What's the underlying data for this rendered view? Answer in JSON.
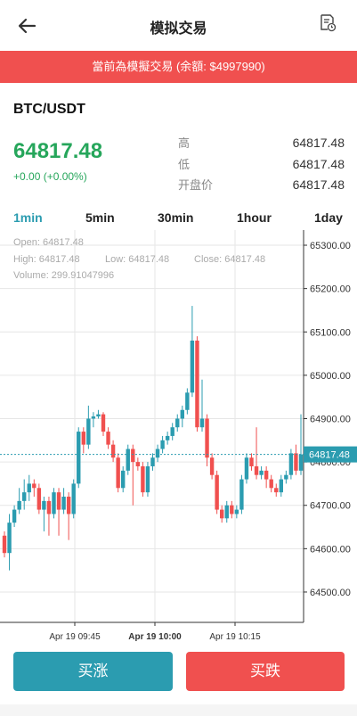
{
  "header": {
    "title": "模拟交易",
    "back_icon": "arrow-left-icon",
    "history_icon": "order-history-icon"
  },
  "banner": {
    "text": "當前為模擬交易 (余額: $4997990)",
    "color": "#f0504f"
  },
  "ticker": {
    "pair": "BTC/USDT",
    "price": "64817.48",
    "change": "+0.00 (+0.00%)",
    "price_color": "#26a65b"
  },
  "stats": [
    {
      "label": "高",
      "value": "64817.48"
    },
    {
      "label": "低",
      "value": "64817.48"
    },
    {
      "label": "开盘价",
      "value": "64817.48"
    }
  ],
  "timeframes": {
    "items": [
      "1min",
      "5min",
      "30min",
      "1hour",
      "1day"
    ],
    "active": "1min",
    "active_color": "#2b9cb0"
  },
  "ohlc": {
    "open": "Open:  64817.48",
    "high": "High:  64817.48",
    "low": "Low:  64817.48",
    "close": "Close:  64817.48",
    "volume": "Volume:  299.91047996"
  },
  "chart_data": {
    "type": "candlestick",
    "y_ticks": [
      "65300.00",
      "65200.00",
      "65100.00",
      "65000.00",
      "64900.00",
      "64800.00",
      "64700.00",
      "64600.00",
      "64500.00"
    ],
    "ylim": [
      64430,
      65335
    ],
    "x_ticks": [
      "Apr 19 09:45",
      "Apr 19 10:00",
      "Apr 19 10:15"
    ],
    "last_price": "64817.48",
    "up_color": "#2b9cb0",
    "down_color": "#f0504f",
    "candles": [
      {
        "o": 64630,
        "c": 64590,
        "h": 64640,
        "l": 64580
      },
      {
        "o": 64590,
        "c": 64660,
        "h": 64680,
        "l": 64550
      },
      {
        "o": 64660,
        "c": 64690,
        "h": 64700,
        "l": 64650
      },
      {
        "o": 64690,
        "c": 64710,
        "h": 64740,
        "l": 64680
      },
      {
        "o": 64710,
        "c": 64730,
        "h": 64760,
        "l": 64690
      },
      {
        "o": 64730,
        "c": 64750,
        "h": 64770,
        "l": 64710
      },
      {
        "o": 64750,
        "c": 64740,
        "h": 64760,
        "l": 64720
      },
      {
        "o": 64740,
        "c": 64690,
        "h": 64750,
        "l": 64680
      },
      {
        "o": 64690,
        "c": 64710,
        "h": 64720,
        "l": 64640
      },
      {
        "o": 64710,
        "c": 64680,
        "h": 64720,
        "l": 64630
      },
      {
        "o": 64680,
        "c": 64730,
        "h": 64740,
        "l": 64670
      },
      {
        "o": 64730,
        "c": 64690,
        "h": 64740,
        "l": 64630
      },
      {
        "o": 64690,
        "c": 64720,
        "h": 64740,
        "l": 64680
      },
      {
        "o": 64720,
        "c": 64680,
        "h": 64730,
        "l": 64620
      },
      {
        "o": 64680,
        "c": 64750,
        "h": 64760,
        "l": 64670
      },
      {
        "o": 64750,
        "c": 64870,
        "h": 64880,
        "l": 64740
      },
      {
        "o": 64870,
        "c": 64840,
        "h": 64880,
        "l": 64820
      },
      {
        "o": 64840,
        "c": 64900,
        "h": 64930,
        "l": 64830
      },
      {
        "o": 64900,
        "c": 64905,
        "h": 64915,
        "l": 64880
      },
      {
        "o": 64905,
        "c": 64910,
        "h": 64920,
        "l": 64900
      },
      {
        "o": 64910,
        "c": 64870,
        "h": 64915,
        "l": 64860
      },
      {
        "o": 64870,
        "c": 64840,
        "h": 64880,
        "l": 64830
      },
      {
        "o": 64840,
        "c": 64810,
        "h": 64850,
        "l": 64800
      },
      {
        "o": 64810,
        "c": 64740,
        "h": 64820,
        "l": 64730
      },
      {
        "o": 64740,
        "c": 64780,
        "h": 64790,
        "l": 64730
      },
      {
        "o": 64780,
        "c": 64830,
        "h": 64840,
        "l": 64770
      },
      {
        "o": 64830,
        "c": 64800,
        "h": 64840,
        "l": 64700
      },
      {
        "o": 64800,
        "c": 64790,
        "h": 64810,
        "l": 64780
      },
      {
        "o": 64790,
        "c": 64730,
        "h": 64800,
        "l": 64720
      },
      {
        "o": 64730,
        "c": 64790,
        "h": 64800,
        "l": 64720
      },
      {
        "o": 64790,
        "c": 64810,
        "h": 64820,
        "l": 64780
      },
      {
        "o": 64810,
        "c": 64830,
        "h": 64840,
        "l": 64800
      },
      {
        "o": 64830,
        "c": 64850,
        "h": 64860,
        "l": 64820
      },
      {
        "o": 64850,
        "c": 64860,
        "h": 64870,
        "l": 64840
      },
      {
        "o": 64860,
        "c": 64880,
        "h": 64890,
        "l": 64850
      },
      {
        "o": 64880,
        "c": 64900,
        "h": 64910,
        "l": 64870
      },
      {
        "o": 64900,
        "c": 64920,
        "h": 64930,
        "l": 64880
      },
      {
        "o": 64920,
        "c": 64960,
        "h": 64970,
        "l": 64910
      },
      {
        "o": 64960,
        "c": 65080,
        "h": 65160,
        "l": 64950
      },
      {
        "o": 65080,
        "c": 64880,
        "h": 65090,
        "l": 64870
      },
      {
        "o": 64880,
        "c": 64900,
        "h": 64990,
        "l": 64870
      },
      {
        "o": 64900,
        "c": 64810,
        "h": 64910,
        "l": 64790
      },
      {
        "o": 64810,
        "c": 64770,
        "h": 64820,
        "l": 64760
      },
      {
        "o": 64770,
        "c": 64690,
        "h": 64780,
        "l": 64680
      },
      {
        "o": 64690,
        "c": 64670,
        "h": 64700,
        "l": 64660
      },
      {
        "o": 64670,
        "c": 64700,
        "h": 64710,
        "l": 64660
      },
      {
        "o": 64700,
        "c": 64680,
        "h": 64710,
        "l": 64670
      },
      {
        "o": 64680,
        "c": 64690,
        "h": 64700,
        "l": 64670
      },
      {
        "o": 64690,
        "c": 64760,
        "h": 64770,
        "l": 64680
      },
      {
        "o": 64760,
        "c": 64810,
        "h": 64820,
        "l": 64750
      },
      {
        "o": 64810,
        "c": 64790,
        "h": 64820,
        "l": 64780
      },
      {
        "o": 64790,
        "c": 64770,
        "h": 64880,
        "l": 64760
      },
      {
        "o": 64770,
        "c": 64780,
        "h": 64790,
        "l": 64760
      },
      {
        "o": 64780,
        "c": 64760,
        "h": 64790,
        "l": 64740
      },
      {
        "o": 64760,
        "c": 64740,
        "h": 64770,
        "l": 64730
      },
      {
        "o": 64740,
        "c": 64730,
        "h": 64750,
        "l": 64720
      },
      {
        "o": 64730,
        "c": 64760,
        "h": 64770,
        "l": 64720
      },
      {
        "o": 64760,
        "c": 64770,
        "h": 64780,
        "l": 64750
      },
      {
        "o": 64770,
        "c": 64820,
        "h": 64830,
        "l": 64760
      },
      {
        "o": 64820,
        "c": 64780,
        "h": 64840,
        "l": 64770
      },
      {
        "o": 64780,
        "c": 64817.48,
        "h": 64910,
        "l": 64770
      }
    ]
  },
  "actions": {
    "buy_label": "买涨",
    "sell_label": "买跌",
    "buy_color": "#2b9cb0",
    "sell_color": "#f0504f"
  }
}
